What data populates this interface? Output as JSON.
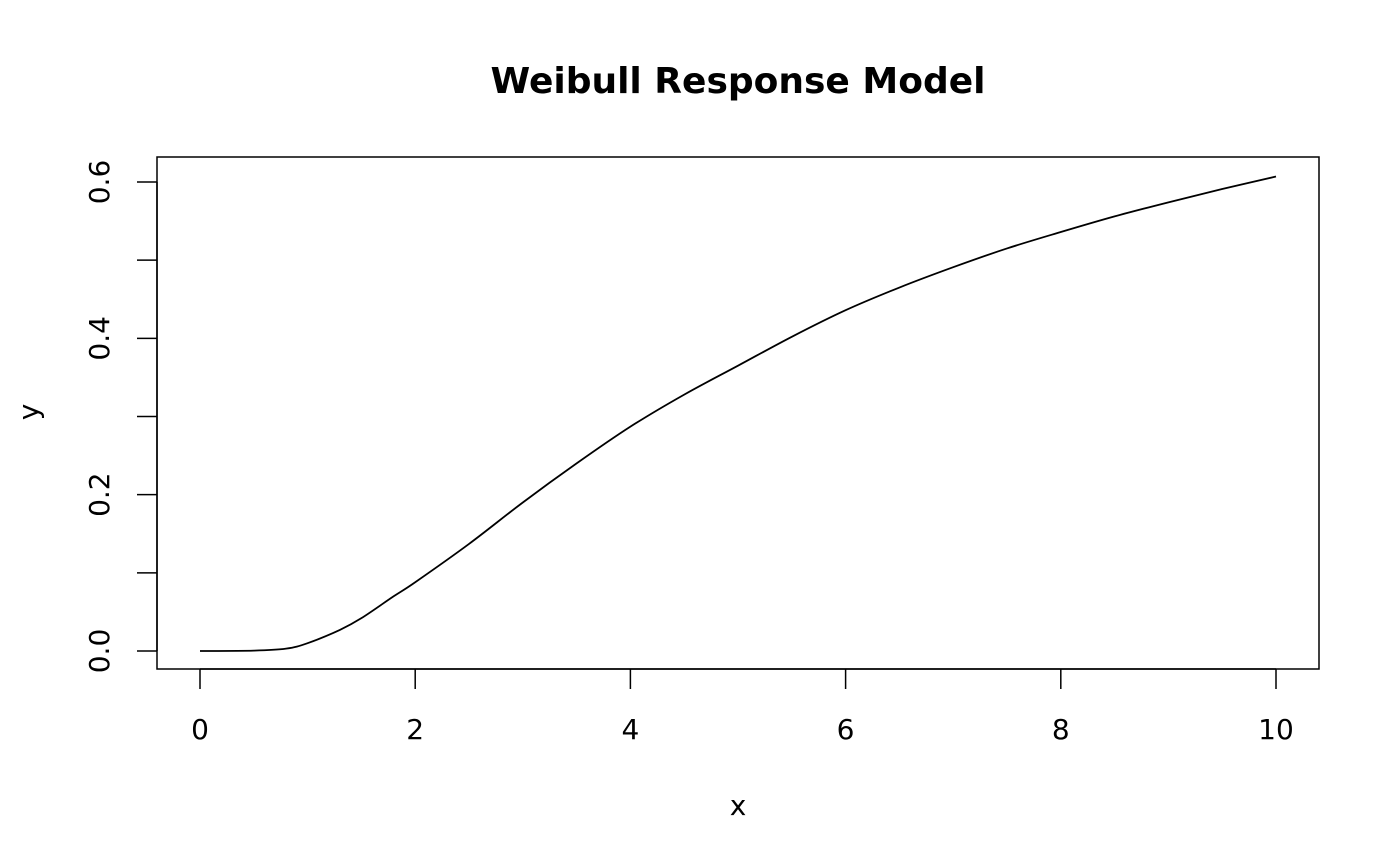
{
  "chart_data": {
    "type": "line",
    "title": "Weibull Response Model",
    "xlabel": "x",
    "ylabel": "y",
    "xlim": [
      0,
      10
    ],
    "ylim": [
      0,
      0.6
    ],
    "x_ticks": [
      0,
      2,
      4,
      6,
      8,
      10
    ],
    "x_tick_labels": [
      "0",
      "2",
      "4",
      "6",
      "8",
      "10"
    ],
    "y_ticks": [
      0,
      0.1,
      0.2,
      0.3,
      0.4,
      0.5,
      0.6
    ],
    "y_tick_labels": [
      "0.0",
      "",
      "0.2",
      "",
      "0.4",
      "",
      "0.6"
    ],
    "grid": false,
    "line_color": "#000000",
    "series": [
      {
        "x": [
          0,
          0.5,
          0.8,
          1,
          1.3,
          1.5,
          1.8,
          2,
          2.5,
          3,
          3.5,
          4,
          4.5,
          5,
          5.5,
          6,
          6.5,
          7,
          7.5,
          8,
          8.5,
          9,
          9.5,
          10
        ],
        "y": [
          0,
          0.0005,
          0.003,
          0.01,
          0.027,
          0.042,
          0.07,
          0.088,
          0.137,
          0.19,
          0.24,
          0.287,
          0.328,
          0.365,
          0.402,
          0.436,
          0.465,
          0.491,
          0.515,
          0.536,
          0.556,
          0.574,
          0.591,
          0.607
        ]
      }
    ]
  }
}
